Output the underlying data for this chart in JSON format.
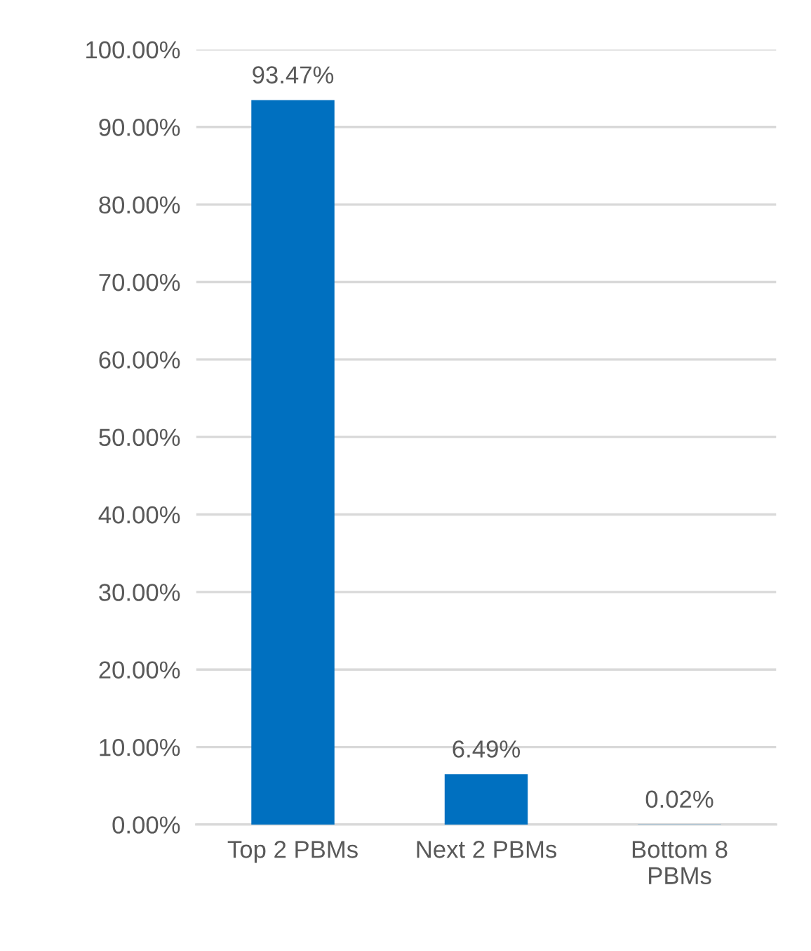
{
  "chart_data": {
    "type": "bar",
    "categories": [
      "Top 2 PBMs",
      "Next 2 PBMs",
      "Bottom 8\nPBMs"
    ],
    "values": [
      93.47,
      6.49,
      0.02
    ],
    "value_labels": [
      "93.47%",
      "6.49%",
      "0.02%"
    ],
    "color": "#0070c0",
    "ylim": [
      0,
      100
    ],
    "yticks": [
      {
        "value": 0,
        "label": "0.00%"
      },
      {
        "value": 10,
        "label": "10.00%"
      },
      {
        "value": 20,
        "label": "20.00%"
      },
      {
        "value": 30,
        "label": "30.00%"
      },
      {
        "value": 40,
        "label": "40.00%"
      },
      {
        "value": 50,
        "label": "50.00%"
      },
      {
        "value": 60,
        "label": "60.00%"
      },
      {
        "value": 70,
        "label": "70.00%"
      },
      {
        "value": 80,
        "label": "80.00%"
      },
      {
        "value": 90,
        "label": "90.00%"
      },
      {
        "value": 100,
        "label": "100.00%"
      }
    ],
    "grid": "y"
  }
}
